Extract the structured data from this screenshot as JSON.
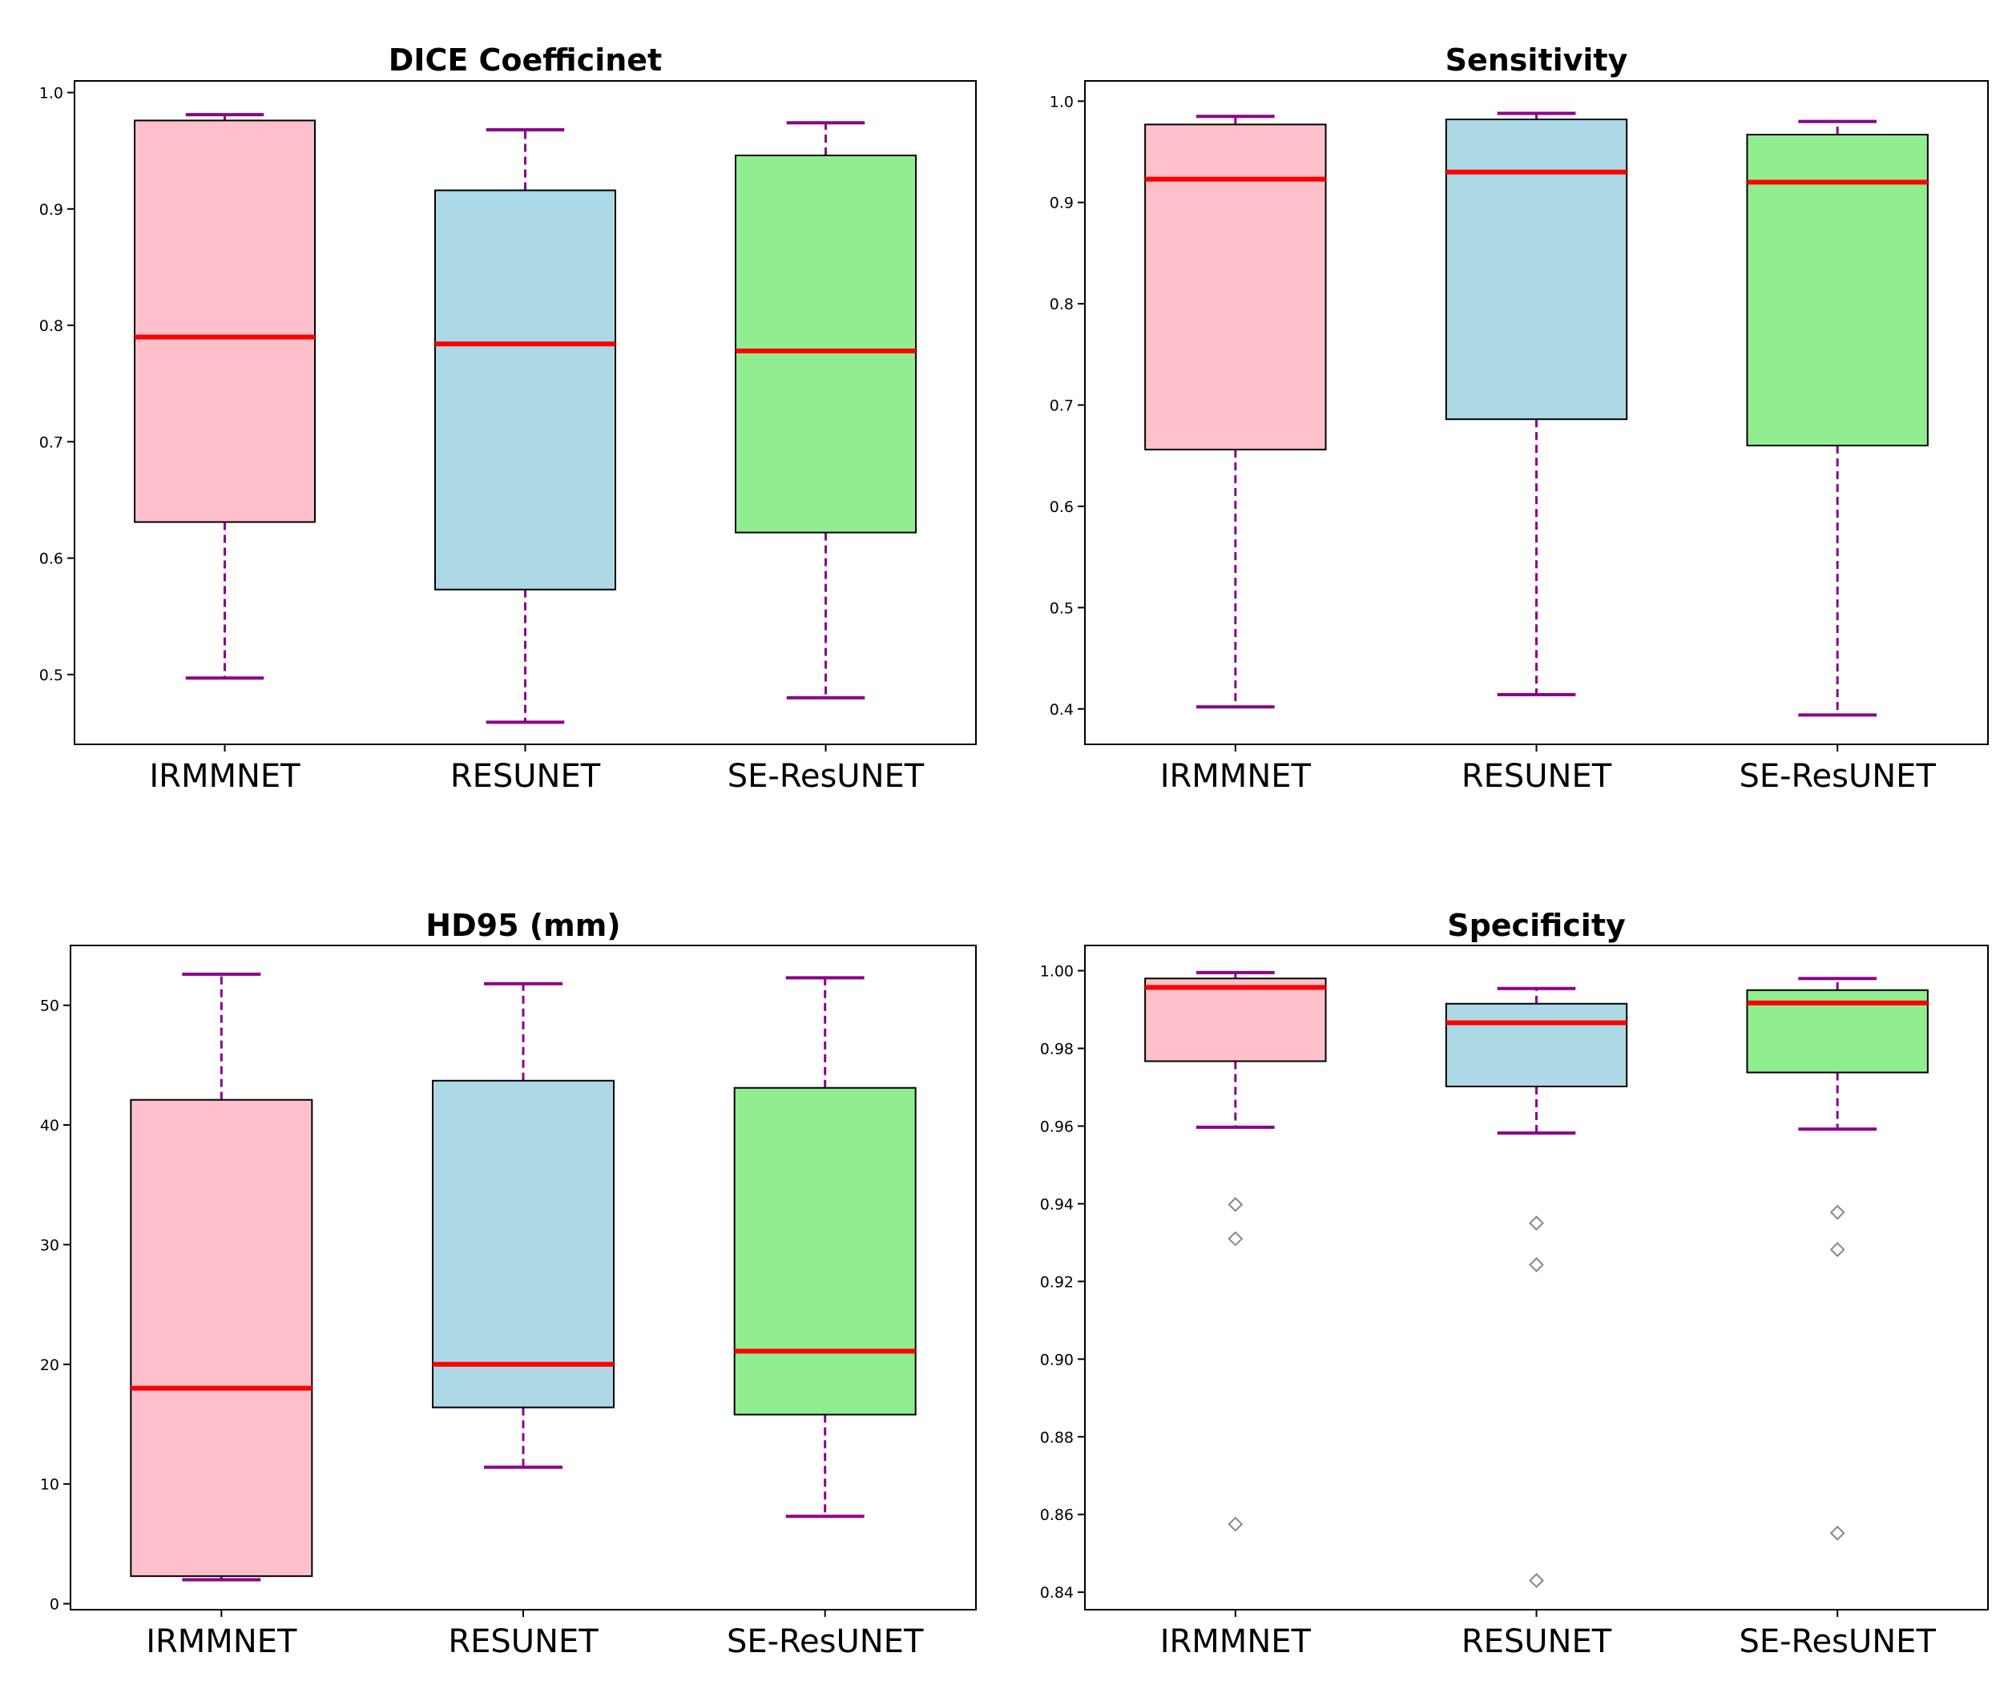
{
  "colors": {
    "IRMMNET": "#ffc0cb",
    "RESUNET": "#add8e6",
    "SE-ResUNET": "#90ee90",
    "median": "#ff0000",
    "whisker": "#8b008b",
    "outlier": "#888888"
  },
  "chart_data": [
    {
      "type": "box",
      "title": "DICE Coefficinet",
      "categories": [
        "IRMMNET",
        "RESUNET",
        "SE-ResUNET"
      ],
      "ylim": [
        0.44,
        1.01
      ],
      "yticks": [
        0.5,
        0.6,
        0.7,
        0.8,
        0.9,
        1.0
      ],
      "ytick_labels": [
        "0.5",
        "0.6",
        "0.7",
        "0.8",
        "0.9",
        "1.0"
      ],
      "boxes": [
        {
          "whislo": 0.497,
          "q1": 0.631,
          "med": 0.79,
          "q3": 0.976,
          "whishi": 0.981,
          "fliers": []
        },
        {
          "whislo": 0.459,
          "q1": 0.573,
          "med": 0.784,
          "q3": 0.916,
          "whishi": 0.968,
          "fliers": []
        },
        {
          "whislo": 0.48,
          "q1": 0.622,
          "med": 0.778,
          "q3": 0.946,
          "whishi": 0.974,
          "fliers": []
        }
      ]
    },
    {
      "type": "box",
      "title": "Sensitivity",
      "categories": [
        "IRMMNET",
        "RESUNET",
        "SE-ResUNET"
      ],
      "ylim": [
        0.365,
        1.02
      ],
      "yticks": [
        0.4,
        0.5,
        0.6,
        0.7,
        0.8,
        0.9,
        1.0
      ],
      "ytick_labels": [
        "0.4",
        "0.5",
        "0.6",
        "0.7",
        "0.8",
        "0.9",
        "1.0"
      ],
      "boxes": [
        {
          "whislo": 0.402,
          "q1": 0.656,
          "med": 0.923,
          "q3": 0.977,
          "whishi": 0.985,
          "fliers": []
        },
        {
          "whislo": 0.414,
          "q1": 0.686,
          "med": 0.93,
          "q3": 0.982,
          "whishi": 0.988,
          "fliers": []
        },
        {
          "whislo": 0.394,
          "q1": 0.66,
          "med": 0.92,
          "q3": 0.967,
          "whishi": 0.98,
          "fliers": []
        }
      ]
    },
    {
      "type": "box",
      "title": "HD95 (mm)",
      "categories": [
        "IRMMNET",
        "RESUNET",
        "SE-ResUNET"
      ],
      "ylim": [
        -0.5,
        55
      ],
      "yticks": [
        0,
        10,
        20,
        30,
        40,
        50
      ],
      "ytick_labels": [
        "0",
        "10",
        "20",
        "30",
        "40",
        "50"
      ],
      "boxes": [
        {
          "whislo": 2.0,
          "q1": 2.3,
          "med": 18.0,
          "q3": 42.1,
          "whishi": 52.6,
          "fliers": []
        },
        {
          "whislo": 11.4,
          "q1": 16.4,
          "med": 20.0,
          "q3": 43.7,
          "whishi": 51.8,
          "fliers": []
        },
        {
          "whislo": 7.3,
          "q1": 15.8,
          "med": 21.1,
          "q3": 43.1,
          "whishi": 52.3,
          "fliers": []
        }
      ]
    },
    {
      "type": "box",
      "title": "Specificity",
      "categories": [
        "IRMMNET",
        "RESUNET",
        "SE-ResUNET"
      ],
      "ylim": [
        0.8355,
        1.0065
      ],
      "yticks": [
        0.84,
        0.86,
        0.88,
        0.9,
        0.92,
        0.94,
        0.96,
        0.98,
        1.0
      ],
      "ytick_labels": [
        "0.84",
        "0.86",
        "0.88",
        "0.90",
        "0.92",
        "0.94",
        "0.96",
        "0.98",
        "1.00"
      ],
      "boxes": [
        {
          "whislo": 0.9597,
          "q1": 0.9767,
          "med": 0.9957,
          "q3": 0.998,
          "whishi": 0.9995,
          "fliers": [
            0.9398,
            0.931,
            0.8575
          ]
        },
        {
          "whislo": 0.9582,
          "q1": 0.9702,
          "med": 0.9866,
          "q3": 0.9915,
          "whishi": 0.9954,
          "fliers": [
            0.935,
            0.9243,
            0.843
          ]
        },
        {
          "whislo": 0.9592,
          "q1": 0.9738,
          "med": 0.9917,
          "q3": 0.995,
          "whishi": 0.998,
          "fliers": [
            0.9378,
            0.9282,
            0.8552
          ]
        }
      ]
    }
  ]
}
